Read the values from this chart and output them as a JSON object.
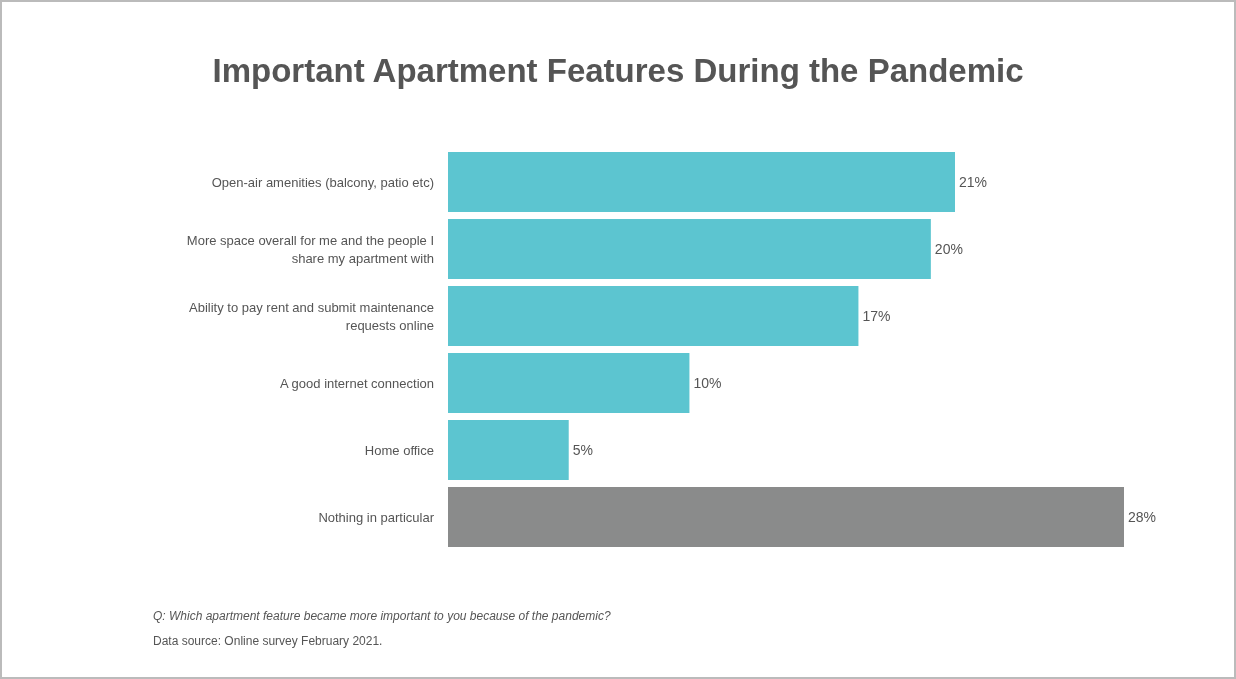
{
  "chart_data": {
    "type": "bar",
    "orientation": "horizontal",
    "title": "Important Apartment Features During the Pandemic",
    "categories": [
      "Open-air amenities (balcony, patio etc)",
      "More space overall for me and the people I share my apartment with",
      "Ability to pay rent and submit maintenance requests online",
      "A good internet connection",
      "Home office",
      "Nothing in particular"
    ],
    "values": [
      21,
      20,
      17,
      10,
      5,
      28
    ],
    "colors": [
      "#5cc5d0",
      "#5cc5d0",
      "#5cc5d0",
      "#5cc5d0",
      "#5cc5d0",
      "#8a8b8b"
    ],
    "value_labels": [
      "21%",
      "20%",
      "17%",
      "10%",
      "5%",
      "28%"
    ],
    "annotations": [
      "Q: Which apartment feature became more important to you because of the pandemic?",
      "Data source: Online survey February 2021."
    ]
  }
}
